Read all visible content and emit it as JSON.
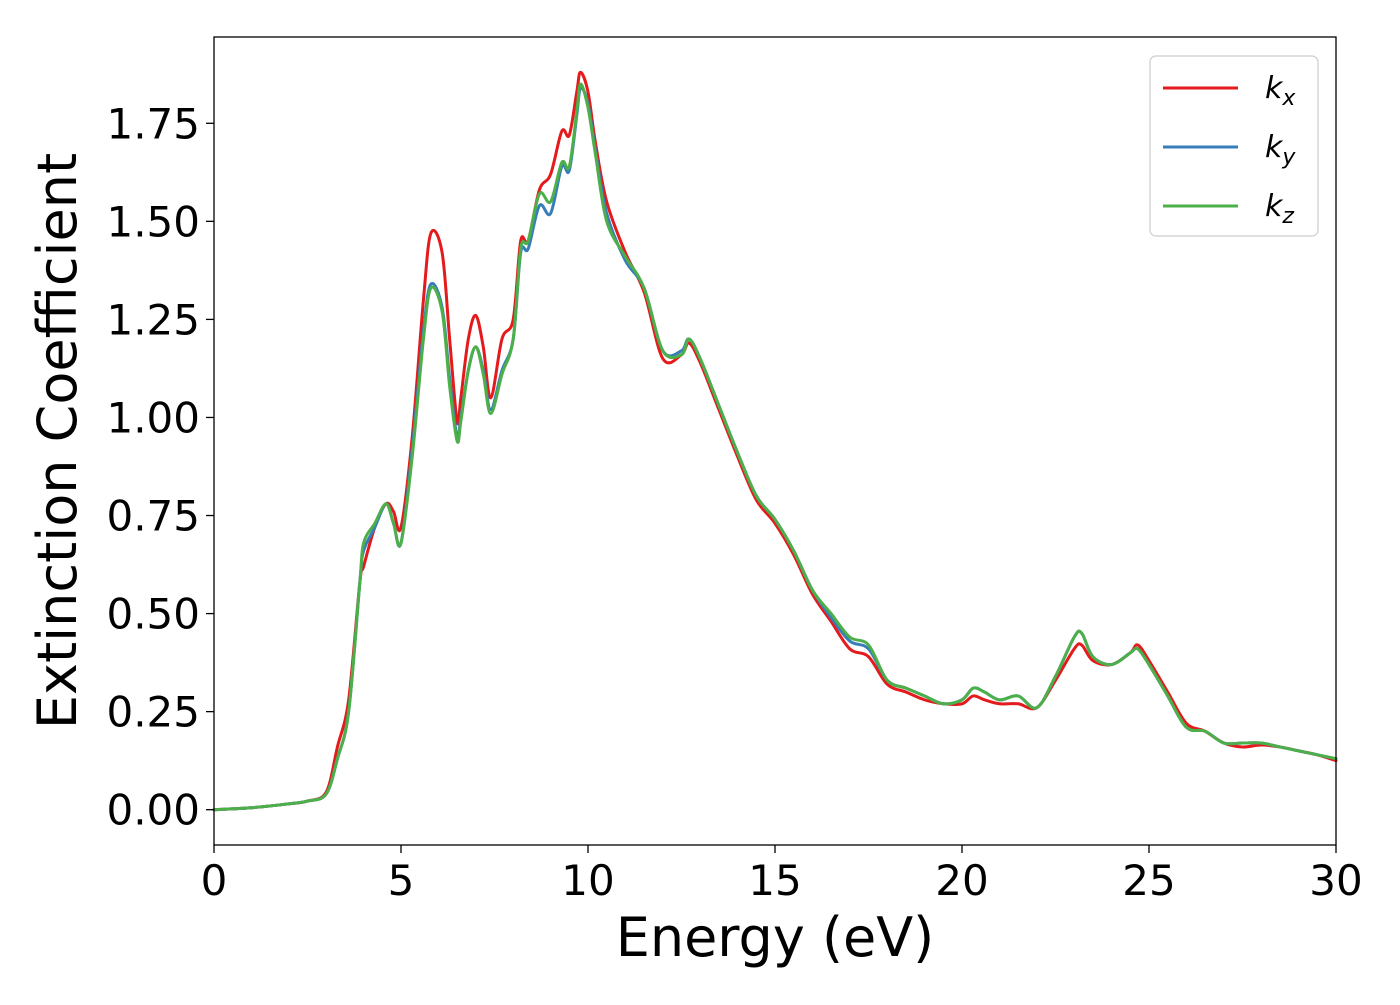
{
  "chart_data": {
    "type": "line",
    "xlabel": "Energy (eV)",
    "ylabel": "Extinction Coefficient",
    "xlim": [
      0,
      30
    ],
    "ylim": [
      -0.09,
      1.97
    ],
    "xticks": [
      0,
      5,
      10,
      15,
      20,
      25,
      30
    ],
    "xtick_labels": [
      "0",
      "5",
      "10",
      "15",
      "20",
      "25",
      "30"
    ],
    "yticks": [
      0.0,
      0.25,
      0.5,
      0.75,
      1.0,
      1.25,
      1.5,
      1.75
    ],
    "ytick_labels": [
      "0.00",
      "0.25",
      "0.50",
      "0.75",
      "1.00",
      "1.25",
      "1.50",
      "1.75"
    ],
    "grid": false,
    "legend_position": "top-right",
    "series": [
      {
        "name": "k_x",
        "legend_base": "k",
        "legend_sub": "x",
        "color": "#e41a1c",
        "x": [
          0,
          1,
          2,
          2.5,
          3.0,
          3.3,
          3.6,
          3.9,
          4.0,
          4.3,
          4.6,
          4.8,
          5.0,
          5.3,
          5.6,
          5.8,
          6.1,
          6.3,
          6.5,
          6.6,
          6.8,
          7.0,
          7.2,
          7.4,
          7.7,
          8.0,
          8.2,
          8.4,
          8.7,
          9.0,
          9.3,
          9.5,
          9.7,
          9.8,
          10.0,
          10.2,
          10.5,
          11.0,
          11.5,
          12.0,
          12.5,
          12.7,
          13.0,
          13.5,
          14.0,
          14.5,
          15.0,
          15.5,
          16.0,
          16.5,
          17.0,
          17.5,
          18.0,
          18.5,
          19.0,
          19.5,
          20.0,
          20.3,
          20.6,
          21.0,
          21.5,
          22.0,
          22.5,
          23.0,
          23.2,
          23.5,
          24.0,
          24.5,
          24.7,
          25.0,
          25.5,
          26.0,
          26.5,
          27.0,
          27.5,
          28.0,
          28.5,
          29.0,
          29.5,
          30.0
        ],
        "y": [
          0.0,
          0.005,
          0.015,
          0.022,
          0.045,
          0.16,
          0.28,
          0.58,
          0.62,
          0.72,
          0.78,
          0.76,
          0.72,
          0.95,
          1.3,
          1.47,
          1.42,
          1.2,
          0.99,
          1.05,
          1.2,
          1.26,
          1.18,
          1.05,
          1.2,
          1.25,
          1.45,
          1.45,
          1.58,
          1.62,
          1.73,
          1.72,
          1.83,
          1.88,
          1.83,
          1.7,
          1.55,
          1.42,
          1.32,
          1.15,
          1.16,
          1.19,
          1.14,
          1.02,
          0.9,
          0.79,
          0.73,
          0.65,
          0.55,
          0.48,
          0.41,
          0.39,
          0.32,
          0.3,
          0.28,
          0.27,
          0.27,
          0.29,
          0.28,
          0.27,
          0.27,
          0.26,
          0.33,
          0.41,
          0.42,
          0.38,
          0.37,
          0.4,
          0.42,
          0.38,
          0.3,
          0.22,
          0.2,
          0.17,
          0.16,
          0.165,
          0.16,
          0.15,
          0.14,
          0.125
        ]
      },
      {
        "name": "k_y",
        "legend_base": "k",
        "legend_sub": "y",
        "color": "#377eb8",
        "x": [
          0,
          1,
          2,
          2.5,
          3.0,
          3.3,
          3.6,
          3.9,
          4.0,
          4.3,
          4.6,
          4.8,
          5.0,
          5.3,
          5.6,
          5.8,
          6.1,
          6.3,
          6.5,
          6.6,
          6.8,
          7.0,
          7.2,
          7.4,
          7.7,
          8.0,
          8.2,
          8.4,
          8.7,
          9.0,
          9.3,
          9.5,
          9.7,
          9.8,
          10.0,
          10.2,
          10.5,
          11.0,
          11.5,
          12.0,
          12.5,
          12.7,
          13.0,
          13.5,
          14.0,
          14.5,
          15.0,
          15.5,
          16.0,
          16.5,
          17.0,
          17.5,
          18.0,
          18.5,
          19.0,
          19.5,
          20.0,
          20.3,
          20.6,
          21.0,
          21.5,
          22.0,
          22.5,
          23.0,
          23.2,
          23.5,
          24.0,
          24.5,
          24.7,
          25.0,
          25.5,
          26.0,
          26.5,
          27.0,
          27.5,
          28.0,
          28.5,
          29.0,
          29.5,
          30.0
        ],
        "y": [
          0.0,
          0.005,
          0.015,
          0.022,
          0.04,
          0.13,
          0.25,
          0.58,
          0.66,
          0.72,
          0.78,
          0.73,
          0.68,
          0.92,
          1.22,
          1.34,
          1.28,
          1.1,
          0.95,
          1.0,
          1.12,
          1.18,
          1.12,
          1.02,
          1.12,
          1.2,
          1.42,
          1.43,
          1.54,
          1.52,
          1.64,
          1.63,
          1.77,
          1.84,
          1.8,
          1.68,
          1.52,
          1.4,
          1.33,
          1.17,
          1.17,
          1.2,
          1.15,
          1.03,
          0.91,
          0.8,
          0.74,
          0.66,
          0.56,
          0.49,
          0.43,
          0.41,
          0.33,
          0.31,
          0.29,
          0.27,
          0.28,
          0.31,
          0.3,
          0.28,
          0.29,
          0.26,
          0.34,
          0.44,
          0.45,
          0.39,
          0.37,
          0.4,
          0.41,
          0.37,
          0.29,
          0.21,
          0.2,
          0.17,
          0.17,
          0.17,
          0.16,
          0.15,
          0.14,
          0.13
        ]
      },
      {
        "name": "k_z",
        "legend_base": "k",
        "legend_sub": "z",
        "color": "#4daf4a",
        "x": [
          0,
          1,
          2,
          2.5,
          3.0,
          3.3,
          3.6,
          3.9,
          4.0,
          4.3,
          4.6,
          4.8,
          5.0,
          5.3,
          5.6,
          5.8,
          6.1,
          6.3,
          6.5,
          6.6,
          6.8,
          7.0,
          7.2,
          7.4,
          7.7,
          8.0,
          8.2,
          8.4,
          8.7,
          9.0,
          9.3,
          9.5,
          9.7,
          9.8,
          10.0,
          10.2,
          10.5,
          11.0,
          11.5,
          12.0,
          12.5,
          12.7,
          13.0,
          13.5,
          14.0,
          14.5,
          15.0,
          15.5,
          16.0,
          16.5,
          17.0,
          17.5,
          18.0,
          18.5,
          19.0,
          19.5,
          20.0,
          20.3,
          20.6,
          21.0,
          21.5,
          22.0,
          22.5,
          23.0,
          23.2,
          23.5,
          24.0,
          24.5,
          24.7,
          25.0,
          25.5,
          26.0,
          26.5,
          27.0,
          27.5,
          28.0,
          28.5,
          29.0,
          29.5,
          30.0
        ],
        "y": [
          0.0,
          0.005,
          0.015,
          0.022,
          0.04,
          0.13,
          0.25,
          0.58,
          0.68,
          0.73,
          0.78,
          0.73,
          0.68,
          0.9,
          1.2,
          1.33,
          1.27,
          1.08,
          0.94,
          0.99,
          1.12,
          1.18,
          1.11,
          1.01,
          1.11,
          1.2,
          1.43,
          1.45,
          1.57,
          1.55,
          1.65,
          1.64,
          1.78,
          1.85,
          1.79,
          1.67,
          1.5,
          1.41,
          1.33,
          1.17,
          1.16,
          1.2,
          1.15,
          1.03,
          0.91,
          0.8,
          0.74,
          0.66,
          0.56,
          0.5,
          0.44,
          0.42,
          0.33,
          0.31,
          0.29,
          0.27,
          0.28,
          0.31,
          0.3,
          0.28,
          0.29,
          0.26,
          0.34,
          0.44,
          0.45,
          0.39,
          0.37,
          0.4,
          0.41,
          0.37,
          0.29,
          0.21,
          0.2,
          0.17,
          0.17,
          0.17,
          0.16,
          0.15,
          0.14,
          0.13
        ]
      }
    ]
  }
}
